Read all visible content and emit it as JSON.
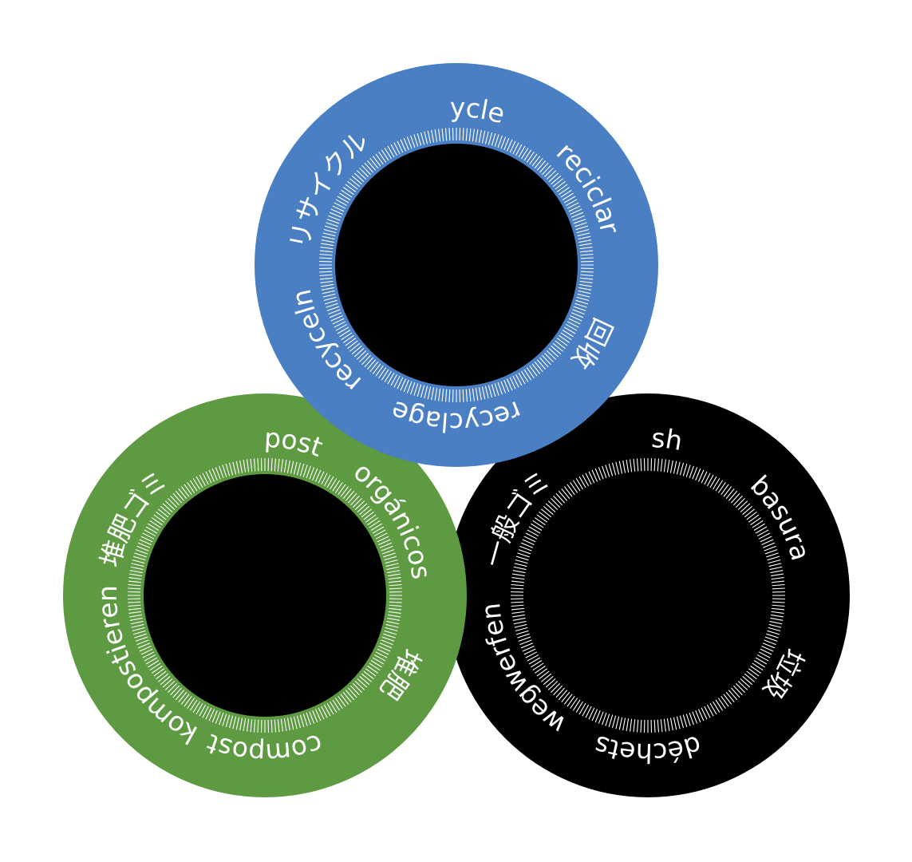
{
  "bins": [
    {
      "id": "recycle",
      "color": "#4a7fc3",
      "words": [
        "recycle",
        "reciclar",
        "回收",
        "recyclage",
        "recyceln",
        "リサイクル"
      ]
    },
    {
      "id": "compost",
      "color": "#5e9a42",
      "words": [
        "compost",
        "orgánicos",
        "堆肥",
        "compost",
        "kompostieren",
        "堆肥ゴミ"
      ]
    },
    {
      "id": "trash",
      "color": "#000000",
      "words": [
        "trash",
        "basura",
        "垃圾",
        "déchets",
        "wegwerfen",
        "一般ゴミ"
      ]
    }
  ]
}
